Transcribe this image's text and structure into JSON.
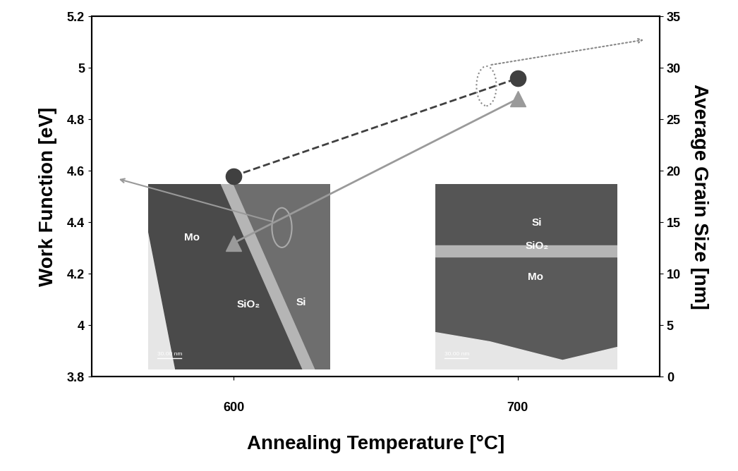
{
  "chart_data": {
    "type": "line",
    "x_label": "Annealing Temperature [°C]",
    "y_label": "Work Function [eV]",
    "y2_label": "Average Grain Size [nm]",
    "x": [
      600,
      700
    ],
    "xlim": [
      550,
      750
    ],
    "xticks": [
      600,
      700
    ],
    "ylim": [
      3.8,
      5.2
    ],
    "yticks": [
      3.8,
      4,
      4.2,
      4.4,
      4.6,
      4.8,
      5,
      5.2
    ],
    "y2lim": [
      0,
      35
    ],
    "y2ticks": [
      0,
      5,
      10,
      15,
      20,
      25,
      30,
      35
    ],
    "series": [
      {
        "color": "#404040",
        "marker": "circle",
        "line_style": "dashed",
        "values": [
          4.58,
          4.96
        ]
      },
      {
        "axis": "y2",
        "color": "#9a9a9a",
        "marker": "triangle",
        "line_style": "solid",
        "values": [
          13,
          27
        ]
      }
    ],
    "insets": [
      {
        "labels": [
          "Mo",
          "SiO₂",
          "Si"
        ],
        "scale_bar": "30.00 nm"
      },
      {
        "labels": [
          "Si",
          "SiO₂",
          "Mo"
        ],
        "scale_bar": "30.00 nm"
      }
    ]
  }
}
